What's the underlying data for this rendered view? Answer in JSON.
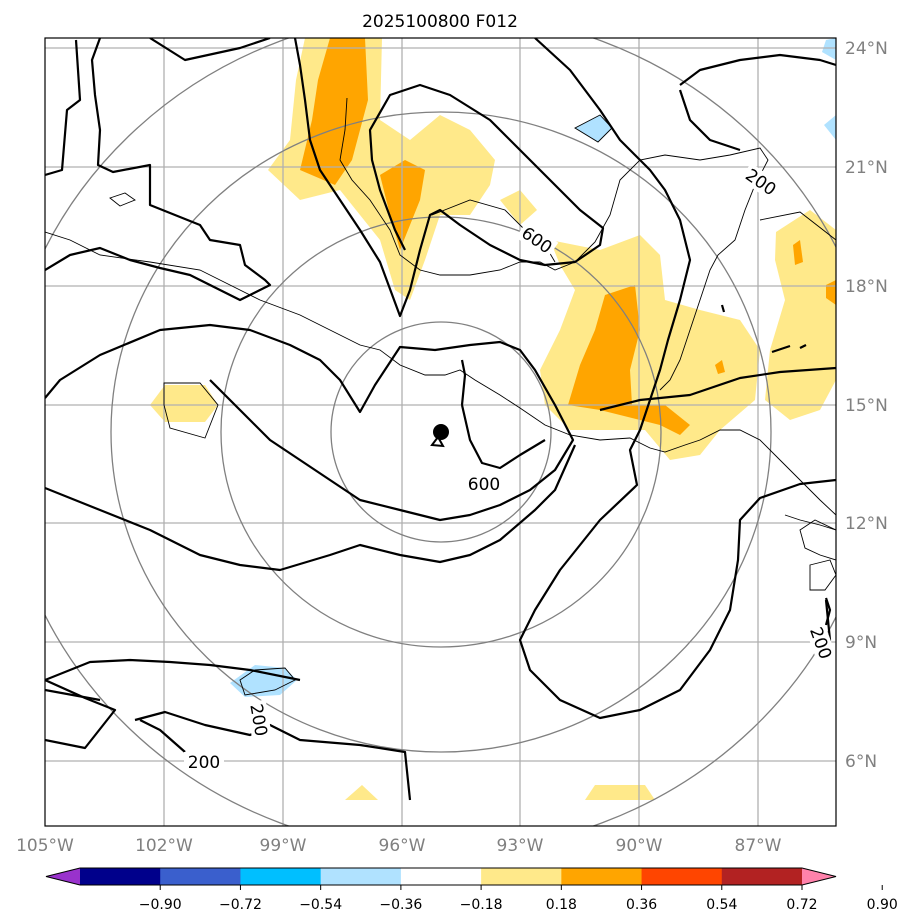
{
  "title": "2025100800 F012",
  "lat_labels": [
    "24°N",
    "21°N",
    "18°N",
    "15°N",
    "12°N",
    "9°N",
    "6°N"
  ],
  "lon_labels": [
    "105°W",
    "102°W",
    "99°W",
    "96°W",
    "93°W",
    "90°W",
    "87°W"
  ],
  "contour_labels": [
    "600",
    "600",
    "200",
    "200",
    "200",
    "200"
  ],
  "colorbar": {
    "colors": [
      "#9932cc",
      "#00008b",
      "#3a5fcd",
      "#00bfff",
      "#b0e2ff",
      "#ffffff",
      "#ffe98a",
      "#ffa500",
      "#ff4500",
      "#b22222",
      "#ff82ab"
    ],
    "tick_labels": [
      "−0.90",
      "−0.72",
      "−0.54",
      "−0.36",
      "−0.18",
      "0.18",
      "0.36",
      "0.54",
      "0.72",
      "0.90"
    ]
  },
  "storm_center": {
    "lat": 14.3,
    "lon": -95.0,
    "marker": "filled-circle"
  }
}
